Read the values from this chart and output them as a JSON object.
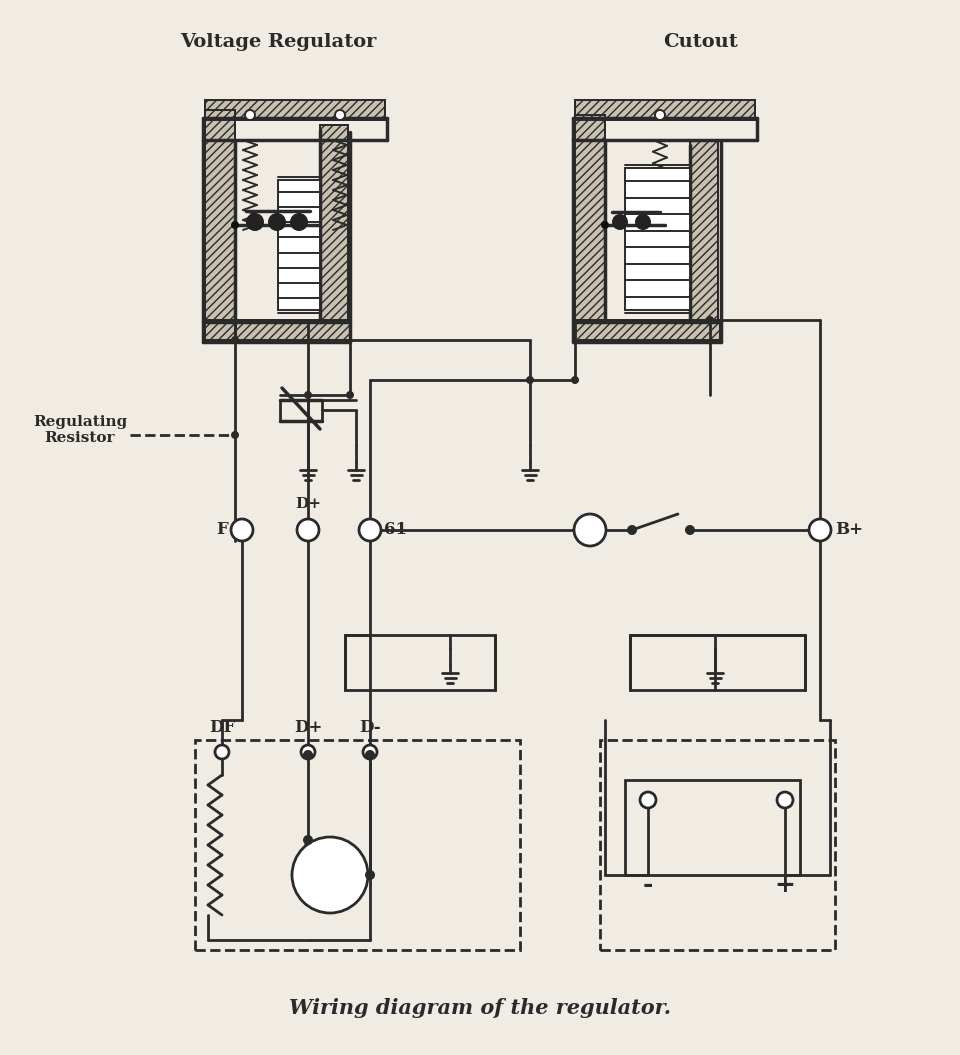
{
  "title": "Wiring diagram of the regulator.",
  "label_voltage_regulator": "Voltage Regulator",
  "label_cutout": "Cutout",
  "label_regulating_resistor": "Regulating\nResistor",
  "label_F": "F",
  "label_D_plus": "D+",
  "label_61": "61",
  "label_B_plus": "B+",
  "label_DF": "DF",
  "label_D_plus2": "D+",
  "label_D_minus": "D-",
  "line_color": "#2a2a2a",
  "bg_color": "#f0ece4",
  "title_fontsize": 15,
  "label_fontsize": 13
}
